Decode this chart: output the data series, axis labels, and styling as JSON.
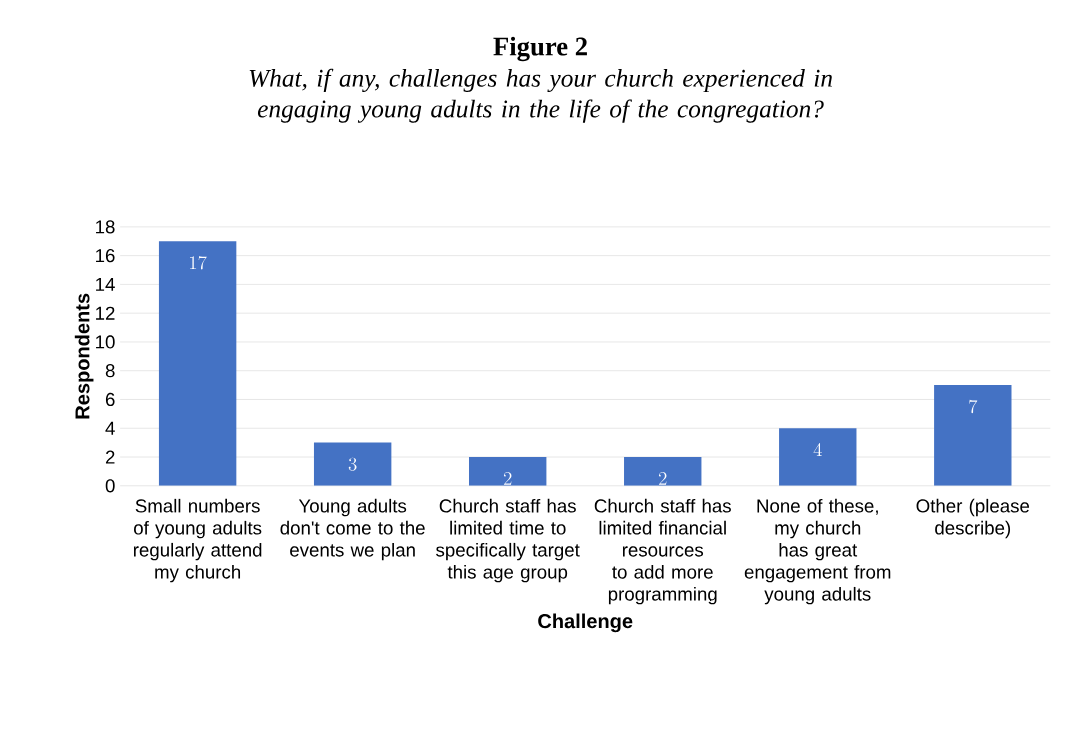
{
  "chart_data": {
    "type": "bar",
    "title": "Figure 2",
    "subtitle": "What, if any, challenges has your church experienced in engaging young adults in the life of the congregation?",
    "xlabel": "Challenge",
    "ylabel": "Respondents",
    "categories": [
      "Small numbers of young adults regularly attend my church",
      "Young adults don't come to the events we plan",
      "Church staff has limited time to specifically target this age group",
      "Church staff has limited financial resources to add more programming",
      "None of these, my church has great engagement from young adults",
      "Other (please describe)"
    ],
    "values": [
      17,
      3,
      2,
      2,
      4,
      7
    ],
    "color": "#4472c4",
    "ylim": [
      0,
      18
    ],
    "yticks": [
      0,
      2,
      4,
      6,
      8,
      10,
      12,
      14,
      16,
      18
    ],
    "grid": "y",
    "data_labels": true
  }
}
